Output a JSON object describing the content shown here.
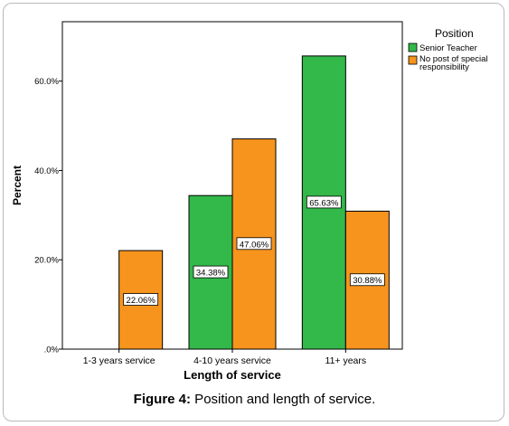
{
  "chart_data": {
    "type": "bar",
    "title": "",
    "xlabel": "Length of service",
    "ylabel": "Percent",
    "categories": [
      "1-3 years service",
      "4-10 years service",
      "11+ years"
    ],
    "yticks": [
      ".0%",
      "20.0%",
      "40.0%",
      "60.0%"
    ],
    "ytick_values": [
      0,
      20,
      40,
      60
    ],
    "ylim": [
      0,
      73.3
    ],
    "grid": false,
    "legend_position": "right",
    "legend_title": "Position",
    "series": [
      {
        "name": "Senior Teacher",
        "color": "#33b84a",
        "values": [
          null,
          34.38,
          65.63
        ],
        "labels": [
          "",
          "34.38%",
          "65.63%"
        ]
      },
      {
        "name": "No post of special responsibility",
        "color": "#f7941d",
        "values": [
          22.06,
          47.06,
          30.88
        ],
        "labels": [
          "22.06%",
          "47.06%",
          "30.88%"
        ]
      }
    ]
  },
  "caption": {
    "prefix": "Figure 4:",
    "text": " Position and length of service."
  }
}
